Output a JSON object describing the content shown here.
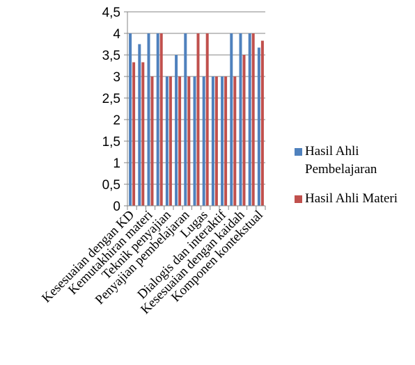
{
  "chart_data": {
    "type": "bar",
    "categories": [
      "Kesesuaian dengan KD",
      "",
      "Kemutakhiran materi",
      "",
      "Teknik penyajian",
      "",
      "Penyajian pembelajaran",
      "",
      "Lugas",
      "",
      "Dialogis dan interaktif",
      "",
      "Kesesuaian dengan kaidah",
      "",
      "Komponen kontekstual"
    ],
    "series": [
      {
        "name": "Hasil Ahli Pembelajaran",
        "color": "#4F81BD",
        "values": [
          4,
          3.75,
          4,
          4,
          3,
          3.5,
          4,
          3,
          3,
          3,
          3,
          4,
          4,
          4,
          3.67
        ]
      },
      {
        "name": "Hasil Ahli Materi",
        "color": "#C0504D",
        "values": [
          3.33,
          3.33,
          3,
          4,
          3,
          3,
          3,
          4,
          4,
          3,
          3,
          3,
          3.5,
          4,
          3.83
        ]
      }
    ],
    "y_ticks": [
      "0",
      "0,5",
      "1",
      "1,5",
      "2",
      "2,5",
      "3",
      "3,5",
      "4",
      "4,5"
    ],
    "ylim": [
      0,
      4.5
    ],
    "grid": true,
    "legend_position": "right"
  }
}
